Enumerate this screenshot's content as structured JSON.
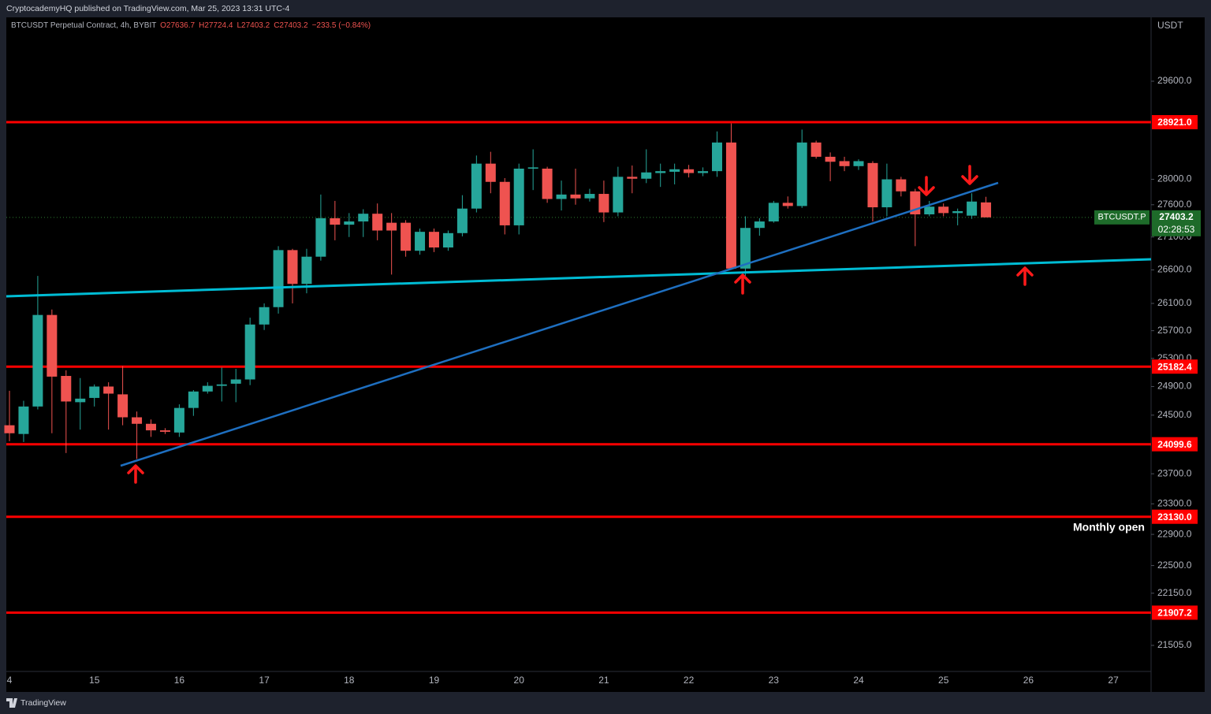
{
  "chart_data": {
    "type": "candlestick",
    "header": "CryptocademyHQ published on TradingView.com, Mar 25, 2023 13:31 UTC-4",
    "symbol": "BTCUSDT Perpetual Contract, 4h, BYBIT",
    "legend_values": [
      "O27636.7",
      "H27724.4",
      "L27403.2",
      "C27403.2",
      "−233.5 (−0.84%)"
    ],
    "y_axis_title": "USDT",
    "log_scale": true,
    "grid": false,
    "ylim": [
      21190,
      30690
    ],
    "yticks": [
      {
        "value": 29600,
        "label": "29600.0"
      },
      {
        "value": 28000,
        "label": "28000.0"
      },
      {
        "value": 27600,
        "label": "27600.0"
      },
      {
        "value": 27100,
        "label": "27100.0"
      },
      {
        "value": 26600,
        "label": "26600.0"
      },
      {
        "value": 26100,
        "label": "26100.0"
      },
      {
        "value": 25700,
        "label": "25700.0"
      },
      {
        "value": 25300,
        "label": "25300.0"
      },
      {
        "value": 24900,
        "label": "24900.0"
      },
      {
        "value": 24500,
        "label": "24500.0"
      },
      {
        "value": 23700,
        "label": "23700.0"
      },
      {
        "value": 23300,
        "label": "23300.0"
      },
      {
        "value": 22900,
        "label": "22900.0"
      },
      {
        "value": 22500,
        "label": "22500.0"
      },
      {
        "value": 22150,
        "label": "22150.0"
      },
      {
        "value": 21505,
        "label": "21505.0"
      }
    ],
    "categories": [
      "4",
      null,
      null,
      null,
      null,
      null,
      "15",
      null,
      null,
      null,
      null,
      null,
      "16",
      null,
      null,
      null,
      null,
      null,
      "17",
      null,
      null,
      null,
      null,
      null,
      "18",
      null,
      null,
      null,
      null,
      null,
      "19",
      null,
      null,
      null,
      null,
      null,
      "20",
      null,
      null,
      null,
      null,
      null,
      "21",
      null,
      null,
      null,
      null,
      null,
      "22",
      null,
      null,
      null,
      null,
      null,
      "23",
      null,
      null,
      null,
      null,
      null,
      "24",
      null,
      null,
      null,
      null,
      null,
      "25",
      null,
      null,
      null,
      null,
      null,
      "26",
      null,
      null,
      null,
      null,
      null,
      "27",
      null,
      null
    ],
    "open": [
      24360,
      24240,
      24620,
      25930,
      25050,
      24680,
      24740,
      24900,
      24790,
      24470,
      24380,
      24290,
      24260,
      24600,
      24830,
      24910,
      24940,
      25000,
      25790,
      26045,
      26900,
      26390,
      26800,
      27390,
      27290,
      27340,
      27460,
      27320,
      27320,
      26890,
      27180,
      26940,
      27160,
      27540,
      28250,
      27960,
      27280,
      28170,
      28170,
      27690,
      27760,
      27700,
      27770,
      27480,
      28040,
      28010,
      28100,
      28120,
      28160,
      28100,
      28130,
      28590,
      26620,
      27240,
      27340,
      27630,
      27580,
      28590,
      28360,
      28290,
      28210,
      28260,
      27560,
      28000,
      27810,
      27450,
      27570,
      27470,
      27430,
      27636.7,
      null,
      null,
      null,
      null,
      null,
      null,
      null,
      null,
      null,
      null,
      null
    ],
    "high": [
      24840,
      24700,
      26510,
      26010,
      25130,
      25020,
      24930,
      24960,
      25190,
      24550,
      24440,
      24320,
      24650,
      24850,
      24960,
      25170,
      25150,
      25890,
      26100,
      26960,
      26920,
      26920,
      27760,
      27660,
      27470,
      27530,
      27620,
      27470,
      27360,
      27230,
      27230,
      27200,
      27750,
      28380,
      28440,
      28020,
      28250,
      28480,
      28200,
      27980,
      28170,
      27850,
      27980,
      28200,
      28220,
      28480,
      28250,
      28250,
      28230,
      28190,
      28770,
      28900,
      27420,
      27390,
      27660,
      27730,
      28800,
      28620,
      28430,
      28360,
      28320,
      28290,
      28250,
      28040,
      27850,
      27660,
      27620,
      27540,
      27780,
      27724.4,
      null,
      null,
      null,
      null,
      null,
      null,
      null,
      null,
      null,
      null,
      null
    ],
    "low": [
      24140,
      24130,
      24580,
      24250,
      23980,
      24300,
      24620,
      24300,
      24360,
      23900,
      24200,
      24240,
      24200,
      24490,
      24800,
      24690,
      24680,
      24920,
      25710,
      25950,
      26100,
      26250,
      26740,
      27050,
      27100,
      27100,
      27050,
      26530,
      26800,
      26830,
      26870,
      26890,
      27110,
      27480,
      27780,
      27140,
      27140,
      27830,
      27630,
      27510,
      27600,
      27650,
      27330,
      27420,
      27780,
      27940,
      27880,
      27920,
      28030,
      28050,
      28040,
      26600,
      26510,
      27120,
      27320,
      27540,
      27550,
      28330,
      27970,
      28130,
      28150,
      27340,
      27420,
      27730,
      26960,
      27420,
      27420,
      27280,
      27380,
      27403.2,
      null,
      null,
      null,
      null,
      null,
      null,
      null,
      null,
      null,
      null,
      null
    ],
    "close": [
      24250,
      24620,
      25930,
      25040,
      24690,
      24730,
      24900,
      24800,
      24470,
      24380,
      24290,
      24270,
      24600,
      24830,
      24910,
      24930,
      25000,
      25790,
      26045,
      26900,
      26390,
      26800,
      27390,
      27290,
      27340,
      27460,
      27200,
      27200,
      26890,
      27180,
      26940,
      27160,
      27540,
      28250,
      27960,
      27280,
      28170,
      28190,
      27690,
      27760,
      27700,
      27770,
      27480,
      28040,
      28010,
      28110,
      28130,
      28160,
      28100,
      28130,
      28590,
      26620,
      27240,
      27340,
      27630,
      27580,
      28590,
      28360,
      28280,
      28210,
      28290,
      27560,
      28000,
      27810,
      27450,
      27570,
      27470,
      27500,
      27650,
      27403.2,
      null,
      null,
      null,
      null,
      null,
      null,
      null,
      null,
      null,
      null,
      null
    ],
    "up_color": "#26a69a",
    "down_color": "#ef5350",
    "level_color": "#ff0000",
    "levels": [
      {
        "value": 28921.0,
        "label": "28921.0"
      },
      {
        "value": 25182.4,
        "label": "25182.4"
      },
      {
        "value": 24099.6,
        "label": "24099.6"
      },
      {
        "value": 23130.0,
        "label": "23130.0"
      },
      {
        "value": 21907.2,
        "label": "21907.2"
      }
    ],
    "last_price": {
      "value": 27403.2,
      "symbol": "BTCUSDT.P",
      "countdown": "02:28:53",
      "color": "#1e6b2a"
    },
    "annotation": "Monthly open",
    "footer": "TradingView"
  }
}
